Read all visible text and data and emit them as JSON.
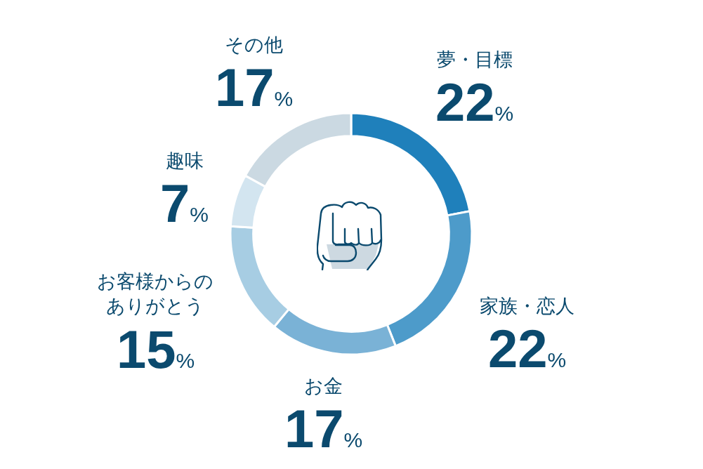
{
  "chart_data": {
    "type": "donut",
    "categories": [
      "夢・目標",
      "家族・恋人",
      "お金",
      "お客様からのありがとう",
      "趣味",
      "その他"
    ],
    "values": [
      22,
      22,
      17,
      15,
      7,
      17
    ],
    "colors": [
      "#1f80bb",
      "#4d9bca",
      "#7ab2d6",
      "#a7cde3",
      "#d3e5f0",
      "#cbd9e2"
    ],
    "value_labels": [
      "22%",
      "22%",
      "17%",
      "15%",
      "7%",
      "17%"
    ]
  }
}
